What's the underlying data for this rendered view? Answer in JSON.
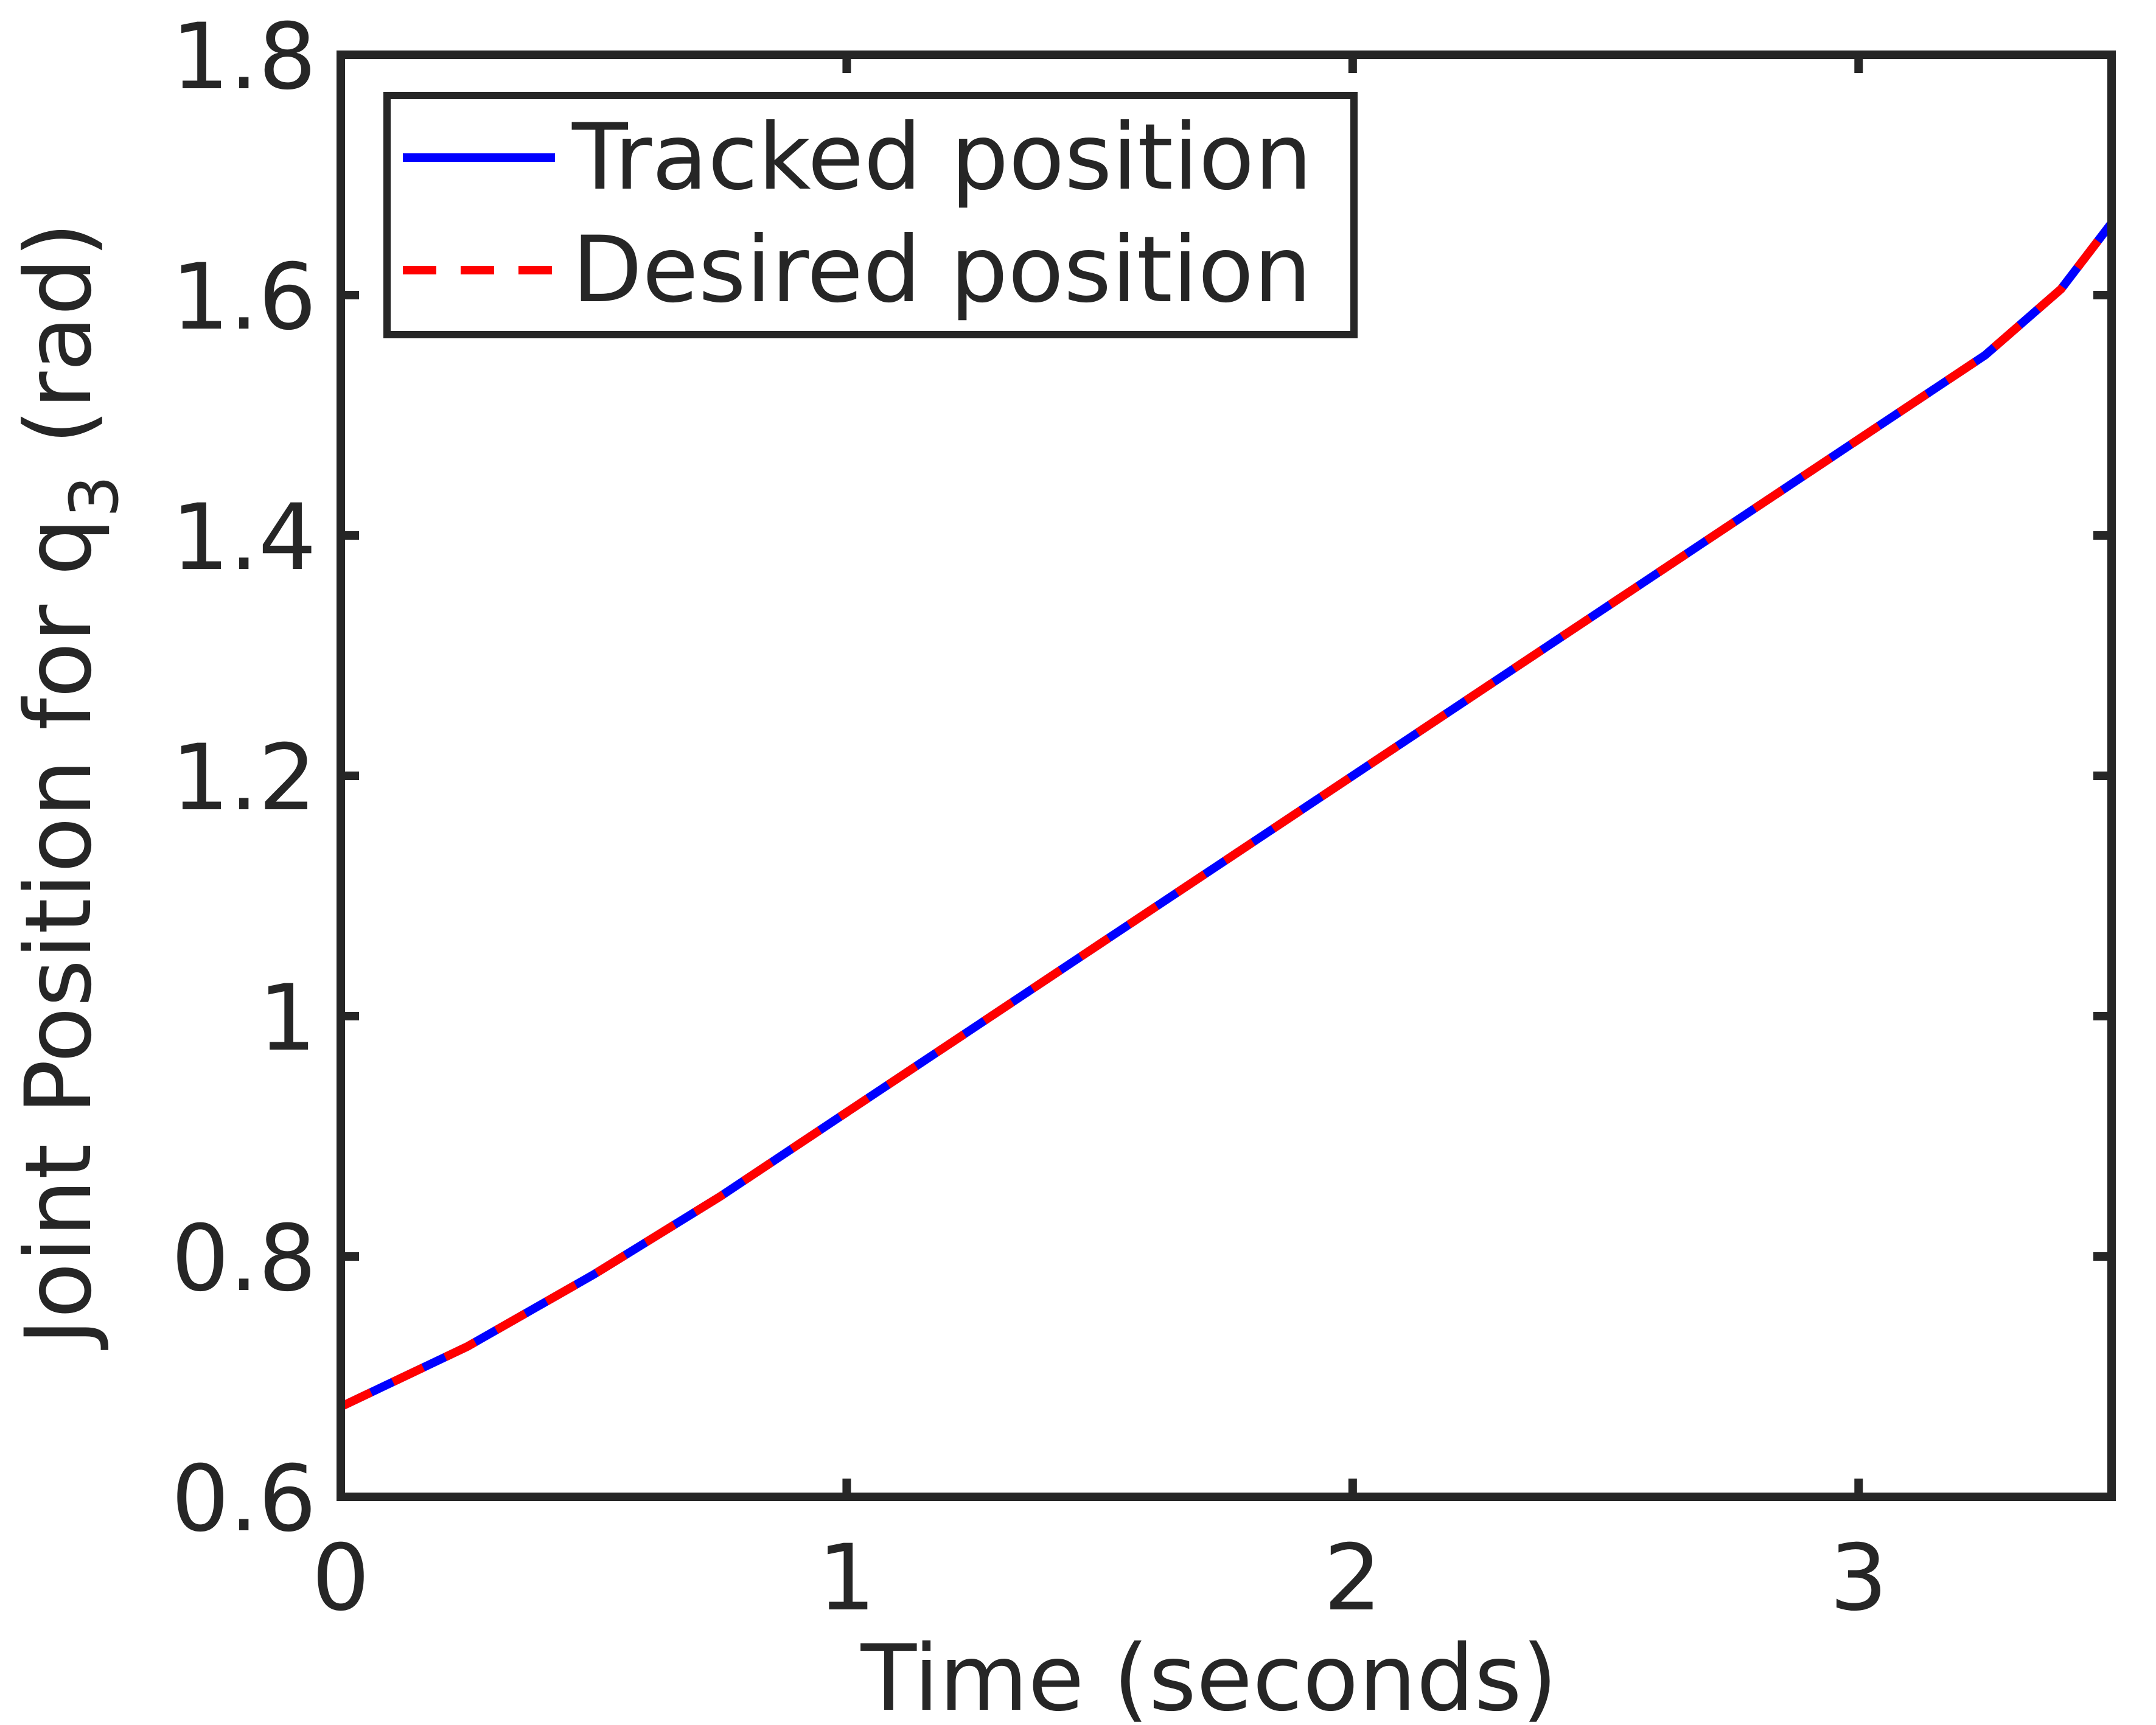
{
  "chart_data": {
    "type": "line",
    "title": "",
    "xlabel": "Time (seconds)",
    "ylabel": "Joint Position for q",
    "ylabel_subscript": "3",
    "ylabel_unit": "(rad)",
    "xlim": [
      0,
      3.5
    ],
    "ylim": [
      0.6,
      1.8
    ],
    "xticks": [
      0,
      1,
      2,
      3
    ],
    "xtick_labels": [
      "0",
      "1",
      "2",
      "3"
    ],
    "yticks": [
      0.6,
      0.8,
      1.0,
      1.2,
      1.4,
      1.6,
      1.8
    ],
    "ytick_labels": [
      "0.6",
      "0.8",
      "1",
      "1.2",
      "1.4",
      "1.6",
      "1.8"
    ],
    "grid": false,
    "legend_position": "top-left",
    "series": [
      {
        "name": "Tracked position",
        "color": "#0000ff",
        "style": "solid",
        "x": [
          0,
          0.25,
          0.5,
          0.75,
          1.0,
          1.25,
          1.5,
          1.75,
          2.0,
          2.25,
          2.5,
          2.75,
          3.0,
          3.25,
          3.4,
          3.5
        ],
        "y": [
          0.675,
          0.725,
          0.785,
          0.85,
          0.92,
          0.99,
          1.06,
          1.13,
          1.2,
          1.27,
          1.34,
          1.41,
          1.48,
          1.55,
          1.605,
          1.66
        ]
      },
      {
        "name": "Desired position",
        "color": "#ff0000",
        "style": "dashed",
        "x": [
          0,
          0.25,
          0.5,
          0.75,
          1.0,
          1.25,
          1.5,
          1.75,
          2.0,
          2.25,
          2.5,
          2.75,
          3.0,
          3.25,
          3.4,
          3.5
        ],
        "y": [
          0.675,
          0.725,
          0.785,
          0.85,
          0.92,
          0.99,
          1.06,
          1.13,
          1.2,
          1.27,
          1.34,
          1.41,
          1.48,
          1.55,
          1.605,
          1.66
        ]
      }
    ],
    "axis_color": "#262626"
  }
}
